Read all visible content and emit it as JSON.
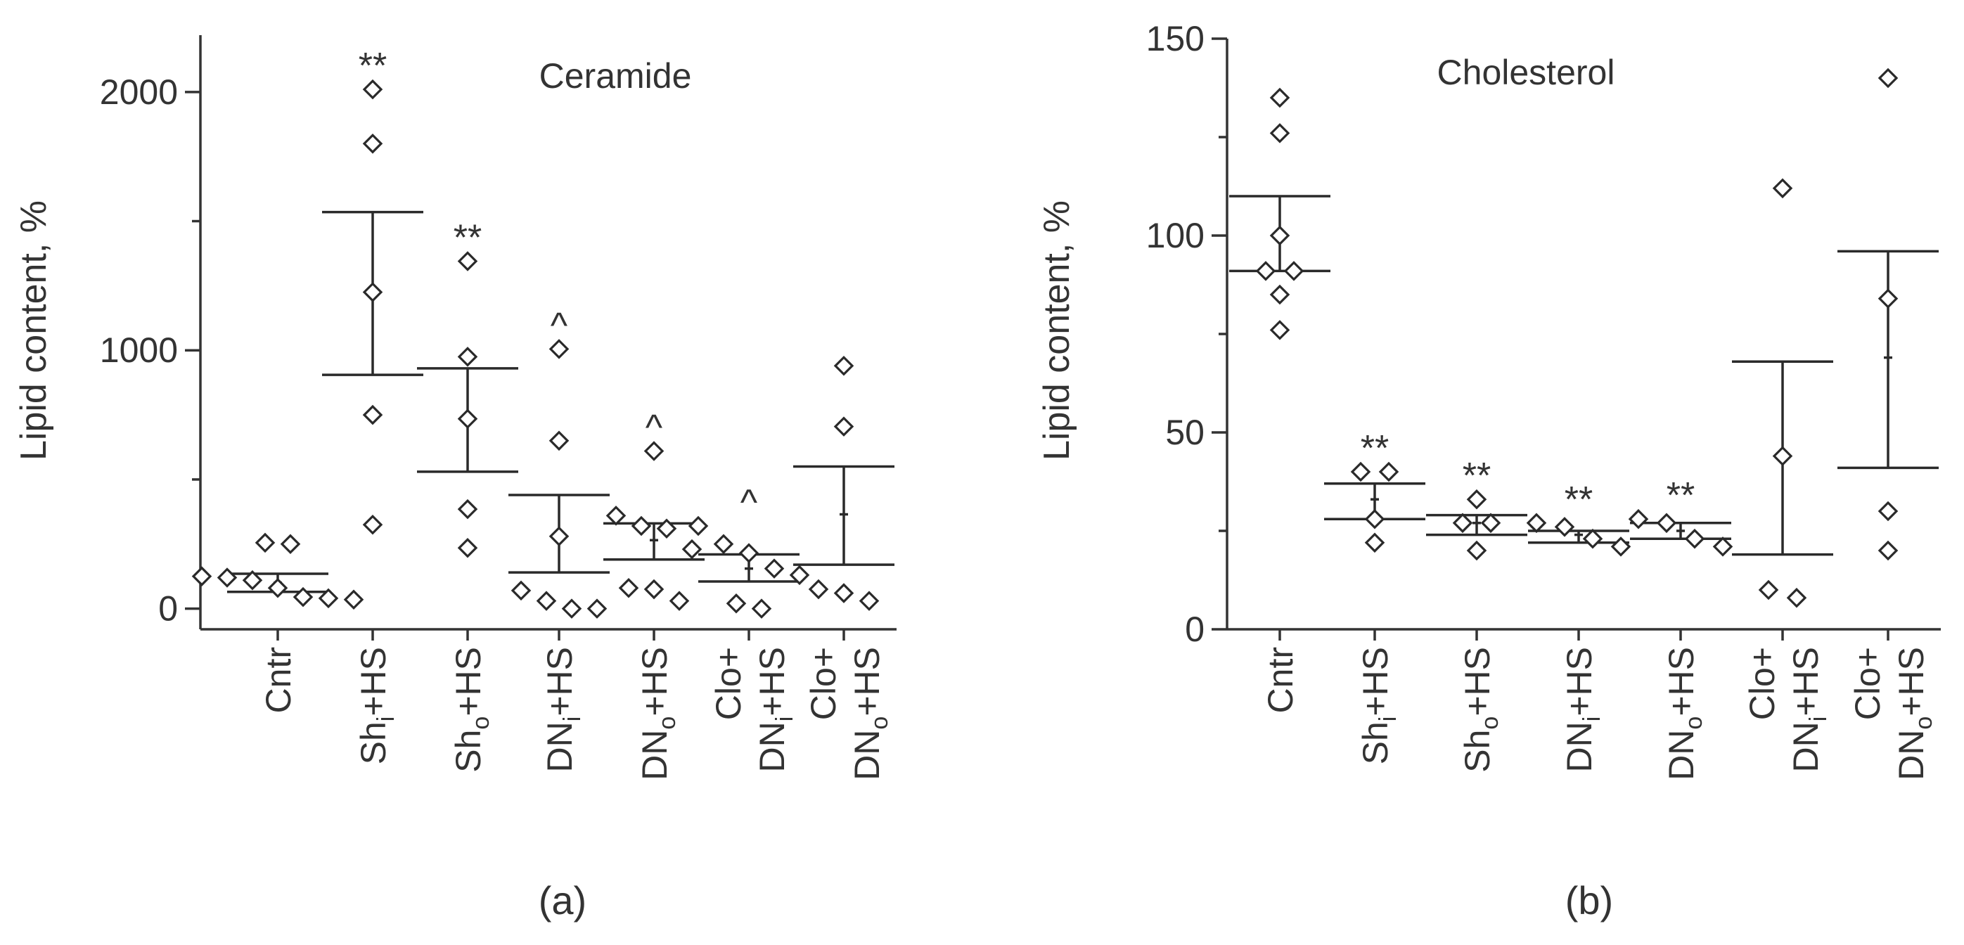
{
  "chart_data": [
    {
      "type": "scatter",
      "panel_label": "(a)",
      "title": "Ceramide",
      "ylabel": "Lipid content, %",
      "xlabel": "",
      "ylim": [
        -80,
        2220
      ],
      "yticks_major": [
        0,
        1000,
        2000
      ],
      "yticks_minor": [
        500,
        1500
      ],
      "ytick_labels": [
        "0",
        "1000",
        "2000"
      ],
      "grid": false,
      "groups": [
        {
          "lines": [
            {
              "main": "Cntr"
            }
          ],
          "points": [
            40,
            45,
            35,
            80,
            110,
            250,
            255,
            120,
            125
          ],
          "mean": 100,
          "sem_low": 65,
          "sem_high": 135,
          "annotation": ""
        },
        {
          "lines": [
            {
              "main": "Sh",
              "sub": "i",
              "post": "+HS"
            }
          ],
          "points": [
            2010,
            1800,
            1225,
            750,
            325
          ],
          "mean": 1225,
          "sem_low": 905,
          "sem_high": 1535,
          "annotation": "**"
        },
        {
          "lines": [
            {
              "main": "Sh",
              "sub": "o",
              "post": "+HS"
            }
          ],
          "points": [
            1345,
            975,
            735,
            385,
            235
          ],
          "mean": 735,
          "sem_low": 530,
          "sem_high": 930,
          "annotation": "**"
        },
        {
          "lines": [
            {
              "main": "DN",
              "sub": "i",
              "post": "+HS"
            }
          ],
          "points": [
            1005,
            650,
            280,
            70,
            0,
            0,
            30
          ],
          "mean": 280,
          "sem_low": 140,
          "sem_high": 440,
          "annotation": "^"
        },
        {
          "lines": [
            {
              "main": "DN",
              "sub": "o",
              "post": "+HS"
            }
          ],
          "points": [
            610,
            360,
            320,
            310,
            230,
            80,
            30,
            75
          ],
          "mean": 265,
          "sem_low": 190,
          "sem_high": 330,
          "annotation": "^"
        },
        {
          "lines": [
            {
              "main": "Clo+"
            },
            {
              "main": "DN",
              "sub": "i",
              "post": "+HS"
            }
          ],
          "points": [
            320,
            250,
            215,
            130,
            20,
            0,
            155
          ],
          "mean": 155,
          "sem_low": 105,
          "sem_high": 210,
          "annotation": "^"
        },
        {
          "lines": [
            {
              "main": "Clo+"
            },
            {
              "main": "DN",
              "sub": "o",
              "post": "+HS"
            }
          ],
          "points": [
            940,
            705,
            75,
            30,
            60
          ],
          "mean": 365,
          "sem_low": 170,
          "sem_high": 550,
          "annotation": ""
        }
      ]
    },
    {
      "type": "scatter",
      "panel_label": "(b)",
      "title": "Cholesterol",
      "ylabel": "Lipid content, %",
      "xlabel": "",
      "ylim": [
        0,
        150
      ],
      "yticks_major": [
        0,
        50,
        100,
        150
      ],
      "yticks_minor": [
        25,
        75,
        125
      ],
      "ytick_labels": [
        "0",
        "50",
        "100",
        "150"
      ],
      "grid": false,
      "groups": [
        {
          "lines": [
            {
              "main": "Cntr"
            }
          ],
          "points": [
            135,
            126,
            100,
            91,
            91,
            85,
            76
          ],
          "mean": 100,
          "sem_low": 91,
          "sem_high": 110,
          "annotation": ""
        },
        {
          "lines": [
            {
              "main": "Sh",
              "sub": "i",
              "post": "+HS"
            }
          ],
          "points": [
            40,
            40,
            28,
            22
          ],
          "mean": 33,
          "sem_low": 28,
          "sem_high": 37,
          "annotation": "**"
        },
        {
          "lines": [
            {
              "main": "Sh",
              "sub": "o",
              "post": "+HS"
            }
          ],
          "points": [
            33,
            27,
            27,
            20
          ],
          "mean": 27,
          "sem_low": 24,
          "sem_high": 29,
          "annotation": "**"
        },
        {
          "lines": [
            {
              "main": "DN",
              "sub": "i",
              "post": "+HS"
            }
          ],
          "points": [
            26,
            27,
            23,
            21
          ],
          "mean": 24,
          "sem_low": 22,
          "sem_high": 25,
          "annotation": "**"
        },
        {
          "lines": [
            {
              "main": "DN",
              "sub": "o",
              "post": "+HS"
            }
          ],
          "points": [
            28,
            27,
            21,
            23
          ],
          "mean": 25,
          "sem_low": 23,
          "sem_high": 27,
          "annotation": "**"
        },
        {
          "lines": [
            {
              "main": "Clo+"
            },
            {
              "main": "DN",
              "sub": "i",
              "post": "+HS"
            }
          ],
          "points": [
            112,
            44,
            10,
            8
          ],
          "mean": 44,
          "sem_low": 19,
          "sem_high": 68,
          "annotation": ""
        },
        {
          "lines": [
            {
              "main": "Clo+"
            },
            {
              "main": "DN",
              "sub": "o",
              "post": "+HS"
            }
          ],
          "points": [
            140,
            84,
            30,
            20
          ],
          "mean": 69,
          "sem_low": 41,
          "sem_high": 96,
          "annotation": ""
        }
      ]
    }
  ]
}
